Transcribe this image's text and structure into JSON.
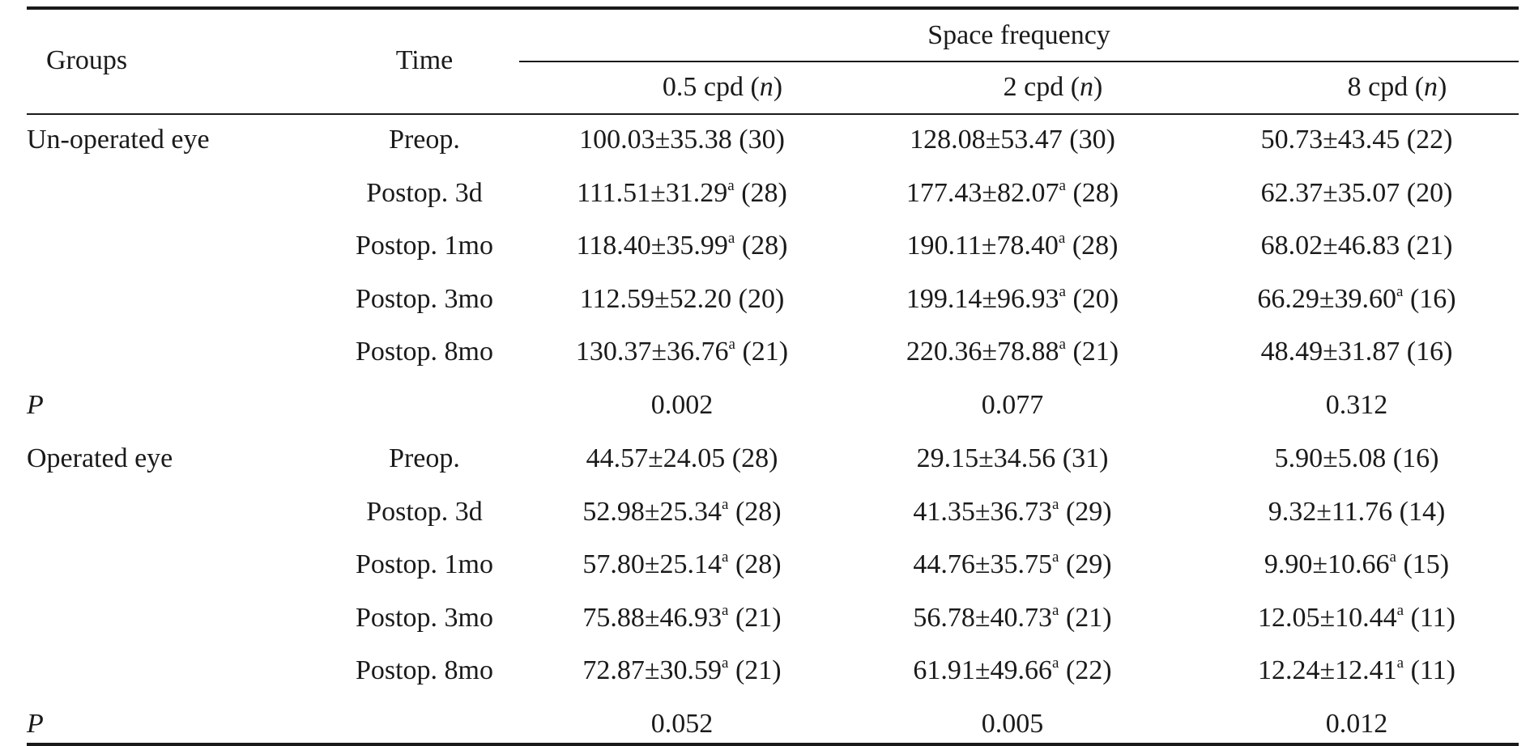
{
  "header": {
    "groups_label": "Groups",
    "time_label": "Time",
    "space_frequency_label": "Space frequency",
    "columns": [
      {
        "label": "0.5 cpd",
        "n": "n"
      },
      {
        "label": "2 cpd",
        "n": "n"
      },
      {
        "label": "8 cpd",
        "n": "n"
      }
    ]
  },
  "sections": [
    {
      "group": "Un-operated eye",
      "rows": [
        {
          "time": "Preop.",
          "cells": [
            {
              "mean_sd": "100.03±35.38",
              "sup": "",
              "n": "(30)"
            },
            {
              "mean_sd": "128.08±53.47",
              "sup": "",
              "n": "(30)"
            },
            {
              "mean_sd": "50.73±43.45",
              "sup": "",
              "n": "(22)"
            }
          ]
        },
        {
          "time": "Postop. 3d",
          "cells": [
            {
              "mean_sd": "111.51±31.29",
              "sup": "a",
              "n": "(28)"
            },
            {
              "mean_sd": "177.43±82.07",
              "sup": "a",
              "n": "(28)"
            },
            {
              "mean_sd": "62.37±35.07",
              "sup": "",
              "n": "(20)"
            }
          ]
        },
        {
          "time": "Postop. 1mo",
          "cells": [
            {
              "mean_sd": "118.40±35.99",
              "sup": "a",
              "n": "(28)"
            },
            {
              "mean_sd": "190.11±78.40",
              "sup": "a",
              "n": "(28)"
            },
            {
              "mean_sd": "68.02±46.83",
              "sup": "",
              "n": "(21)"
            }
          ]
        },
        {
          "time": "Postop. 3mo",
          "cells": [
            {
              "mean_sd": "112.59±52.20",
              "sup": "",
              "n": "(20)"
            },
            {
              "mean_sd": "199.14±96.93",
              "sup": "a",
              "n": "(20)"
            },
            {
              "mean_sd": "66.29±39.60",
              "sup": "a",
              "n": "(16)"
            }
          ]
        },
        {
          "time": "Postop. 8mo",
          "cells": [
            {
              "mean_sd": "130.37±36.76",
              "sup": "a",
              "n": "(21)"
            },
            {
              "mean_sd": "220.36±78.88",
              "sup": "a",
              "n": "(21)"
            },
            {
              "mean_sd": "48.49±31.87",
              "sup": "",
              "n": "(16)"
            }
          ]
        }
      ],
      "p_label": "P",
      "p_values": [
        "0.002",
        "0.077",
        "0.312"
      ]
    },
    {
      "group": "Operated eye",
      "rows": [
        {
          "time": "Preop.",
          "cells": [
            {
              "mean_sd": "44.57±24.05",
              "sup": "",
              "n": "(28)"
            },
            {
              "mean_sd": "29.15±34.56",
              "sup": "",
              "n": "(31)"
            },
            {
              "mean_sd": "5.90±5.08",
              "sup": "",
              "n": "(16)"
            }
          ]
        },
        {
          "time": "Postop. 3d",
          "cells": [
            {
              "mean_sd": "52.98±25.34",
              "sup": "a",
              "n": "(28)"
            },
            {
              "mean_sd": "41.35±36.73",
              "sup": "a",
              "n": "(29)"
            },
            {
              "mean_sd": "9.32±11.76",
              "sup": "",
              "n": "(14)"
            }
          ]
        },
        {
          "time": "Postop. 1mo",
          "cells": [
            {
              "mean_sd": "57.80±25.14",
              "sup": "a",
              "n": "(28)"
            },
            {
              "mean_sd": "44.76±35.75",
              "sup": "a",
              "n": "(29)"
            },
            {
              "mean_sd": "9.90±10.66",
              "sup": "a",
              "n": "(15)"
            }
          ]
        },
        {
          "time": "Postop. 3mo",
          "cells": [
            {
              "mean_sd": "75.88±46.93",
              "sup": "a",
              "n": "(21)"
            },
            {
              "mean_sd": "56.78±40.73",
              "sup": "a",
              "n": "(21)"
            },
            {
              "mean_sd": "12.05±10.44",
              "sup": "a",
              "n": "(11)"
            }
          ]
        },
        {
          "time": "Postop. 8mo",
          "cells": [
            {
              "mean_sd": "72.87±30.59",
              "sup": "a",
              "n": "(21)"
            },
            {
              "mean_sd": "61.91±49.66",
              "sup": "a",
              "n": "(22)"
            },
            {
              "mean_sd": "12.24±12.41",
              "sup": "a",
              "n": "(11)"
            }
          ]
        }
      ],
      "p_label": "P",
      "p_values": [
        "0.052",
        "0.005",
        "0.012"
      ]
    }
  ]
}
